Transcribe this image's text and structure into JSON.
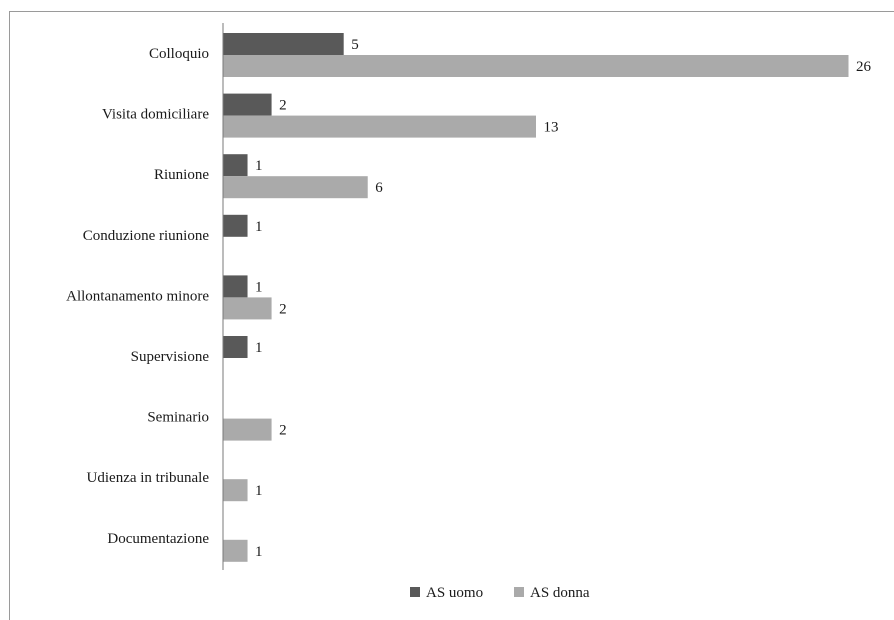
{
  "chart_data": {
    "type": "bar",
    "orientation": "horizontal",
    "categories": [
      "Colloquio",
      "Visita domiciliare",
      "Riunione",
      "Conduzione riunione",
      "Allontanamento minore",
      "Supervisione",
      "Seminario",
      "Udienza in tribunale",
      "Documentazione"
    ],
    "series": [
      {
        "name": "AS uomo",
        "color": "#595959",
        "values": [
          5,
          2,
          1,
          1,
          1,
          1,
          null,
          null,
          null
        ]
      },
      {
        "name": "AS donna",
        "color": "#aaaaaa",
        "values": [
          26,
          13,
          6,
          null,
          2,
          null,
          2,
          1,
          1
        ]
      }
    ],
    "xlim": [
      0,
      26
    ],
    "grid": false,
    "legend_position": "bottom"
  }
}
